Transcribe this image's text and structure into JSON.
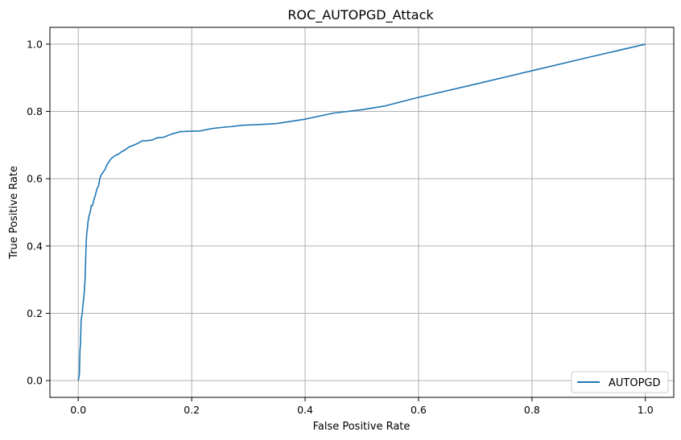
{
  "chart_data": {
    "type": "line",
    "title": "ROC_AUTOPGD_Attack",
    "xlabel": "False Positive Rate",
    "ylabel": "True Positive Rate",
    "xlim": [
      -0.05,
      1.05
    ],
    "ylim": [
      -0.05,
      1.05
    ],
    "xticks": [
      0.0,
      0.2,
      0.4,
      0.6,
      0.8,
      1.0
    ],
    "xtick_labels": [
      "0.0",
      "0.2",
      "0.4",
      "0.6",
      "0.8",
      "1.0"
    ],
    "yticks": [
      0.0,
      0.2,
      0.4,
      0.6,
      0.8,
      1.0
    ],
    "ytick_labels": [
      "0.0",
      "0.2",
      "0.4",
      "0.6",
      "0.8",
      "1.0"
    ],
    "grid": true,
    "legend_position": "bottom-right",
    "series": [
      {
        "name": "AUTOPGD",
        "color": "#1f77b4",
        "x": [
          0.0,
          0.002,
          0.003,
          0.004,
          0.005,
          0.006,
          0.007,
          0.008,
          0.01,
          0.012,
          0.013,
          0.014,
          0.015,
          0.016,
          0.017,
          0.018,
          0.019,
          0.021,
          0.023,
          0.025,
          0.028,
          0.03,
          0.033,
          0.036,
          0.038,
          0.04,
          0.044,
          0.048,
          0.05,
          0.054,
          0.058,
          0.062,
          0.066,
          0.07,
          0.076,
          0.082,
          0.09,
          0.098,
          0.105,
          0.112,
          0.12,
          0.13,
          0.14,
          0.15,
          0.165,
          0.18,
          0.195,
          0.215,
          0.235,
          0.25,
          0.27,
          0.29,
          0.32,
          0.35,
          0.4,
          0.45,
          0.5,
          0.54,
          0.6,
          0.7,
          0.8,
          0.9,
          1.0
        ],
        "y": [
          0.0,
          0.02,
          0.09,
          0.11,
          0.18,
          0.19,
          0.2,
          0.22,
          0.25,
          0.3,
          0.36,
          0.41,
          0.44,
          0.45,
          0.47,
          0.48,
          0.49,
          0.5,
          0.52,
          0.52,
          0.54,
          0.55,
          0.57,
          0.58,
          0.6,
          0.61,
          0.62,
          0.63,
          0.64,
          0.65,
          0.66,
          0.665,
          0.67,
          0.672,
          0.68,
          0.685,
          0.695,
          0.7,
          0.705,
          0.712,
          0.713,
          0.715,
          0.722,
          0.723,
          0.733,
          0.74,
          0.741,
          0.742,
          0.749,
          0.752,
          0.755,
          0.759,
          0.761,
          0.764,
          0.777,
          0.795,
          0.805,
          0.816,
          0.842,
          0.881,
          0.921,
          0.961,
          1.0
        ]
      }
    ]
  }
}
